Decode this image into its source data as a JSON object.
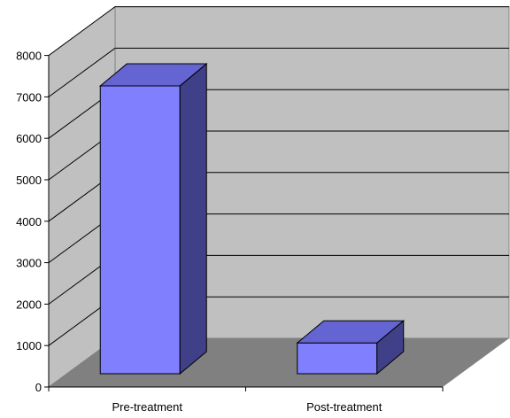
{
  "chart_data": {
    "type": "bar",
    "style": "3d-column",
    "categories": [
      "Pre-treatment",
      "Post-treatment"
    ],
    "values": [
      7050,
      850
    ],
    "title": "",
    "xlabel": "",
    "ylabel": "",
    "ylim": [
      0,
      8000
    ],
    "yticks": [
      0,
      1000,
      2000,
      3000,
      4000,
      5000,
      6000,
      7000,
      8000
    ],
    "grid": true,
    "legend": "none",
    "colors": {
      "bar_front": "#8080ff",
      "bar_top": "#6464d2",
      "bar_side": "#404088",
      "wall": "#c0c0c0",
      "floor": "#808080",
      "gridline": "#000000"
    }
  }
}
